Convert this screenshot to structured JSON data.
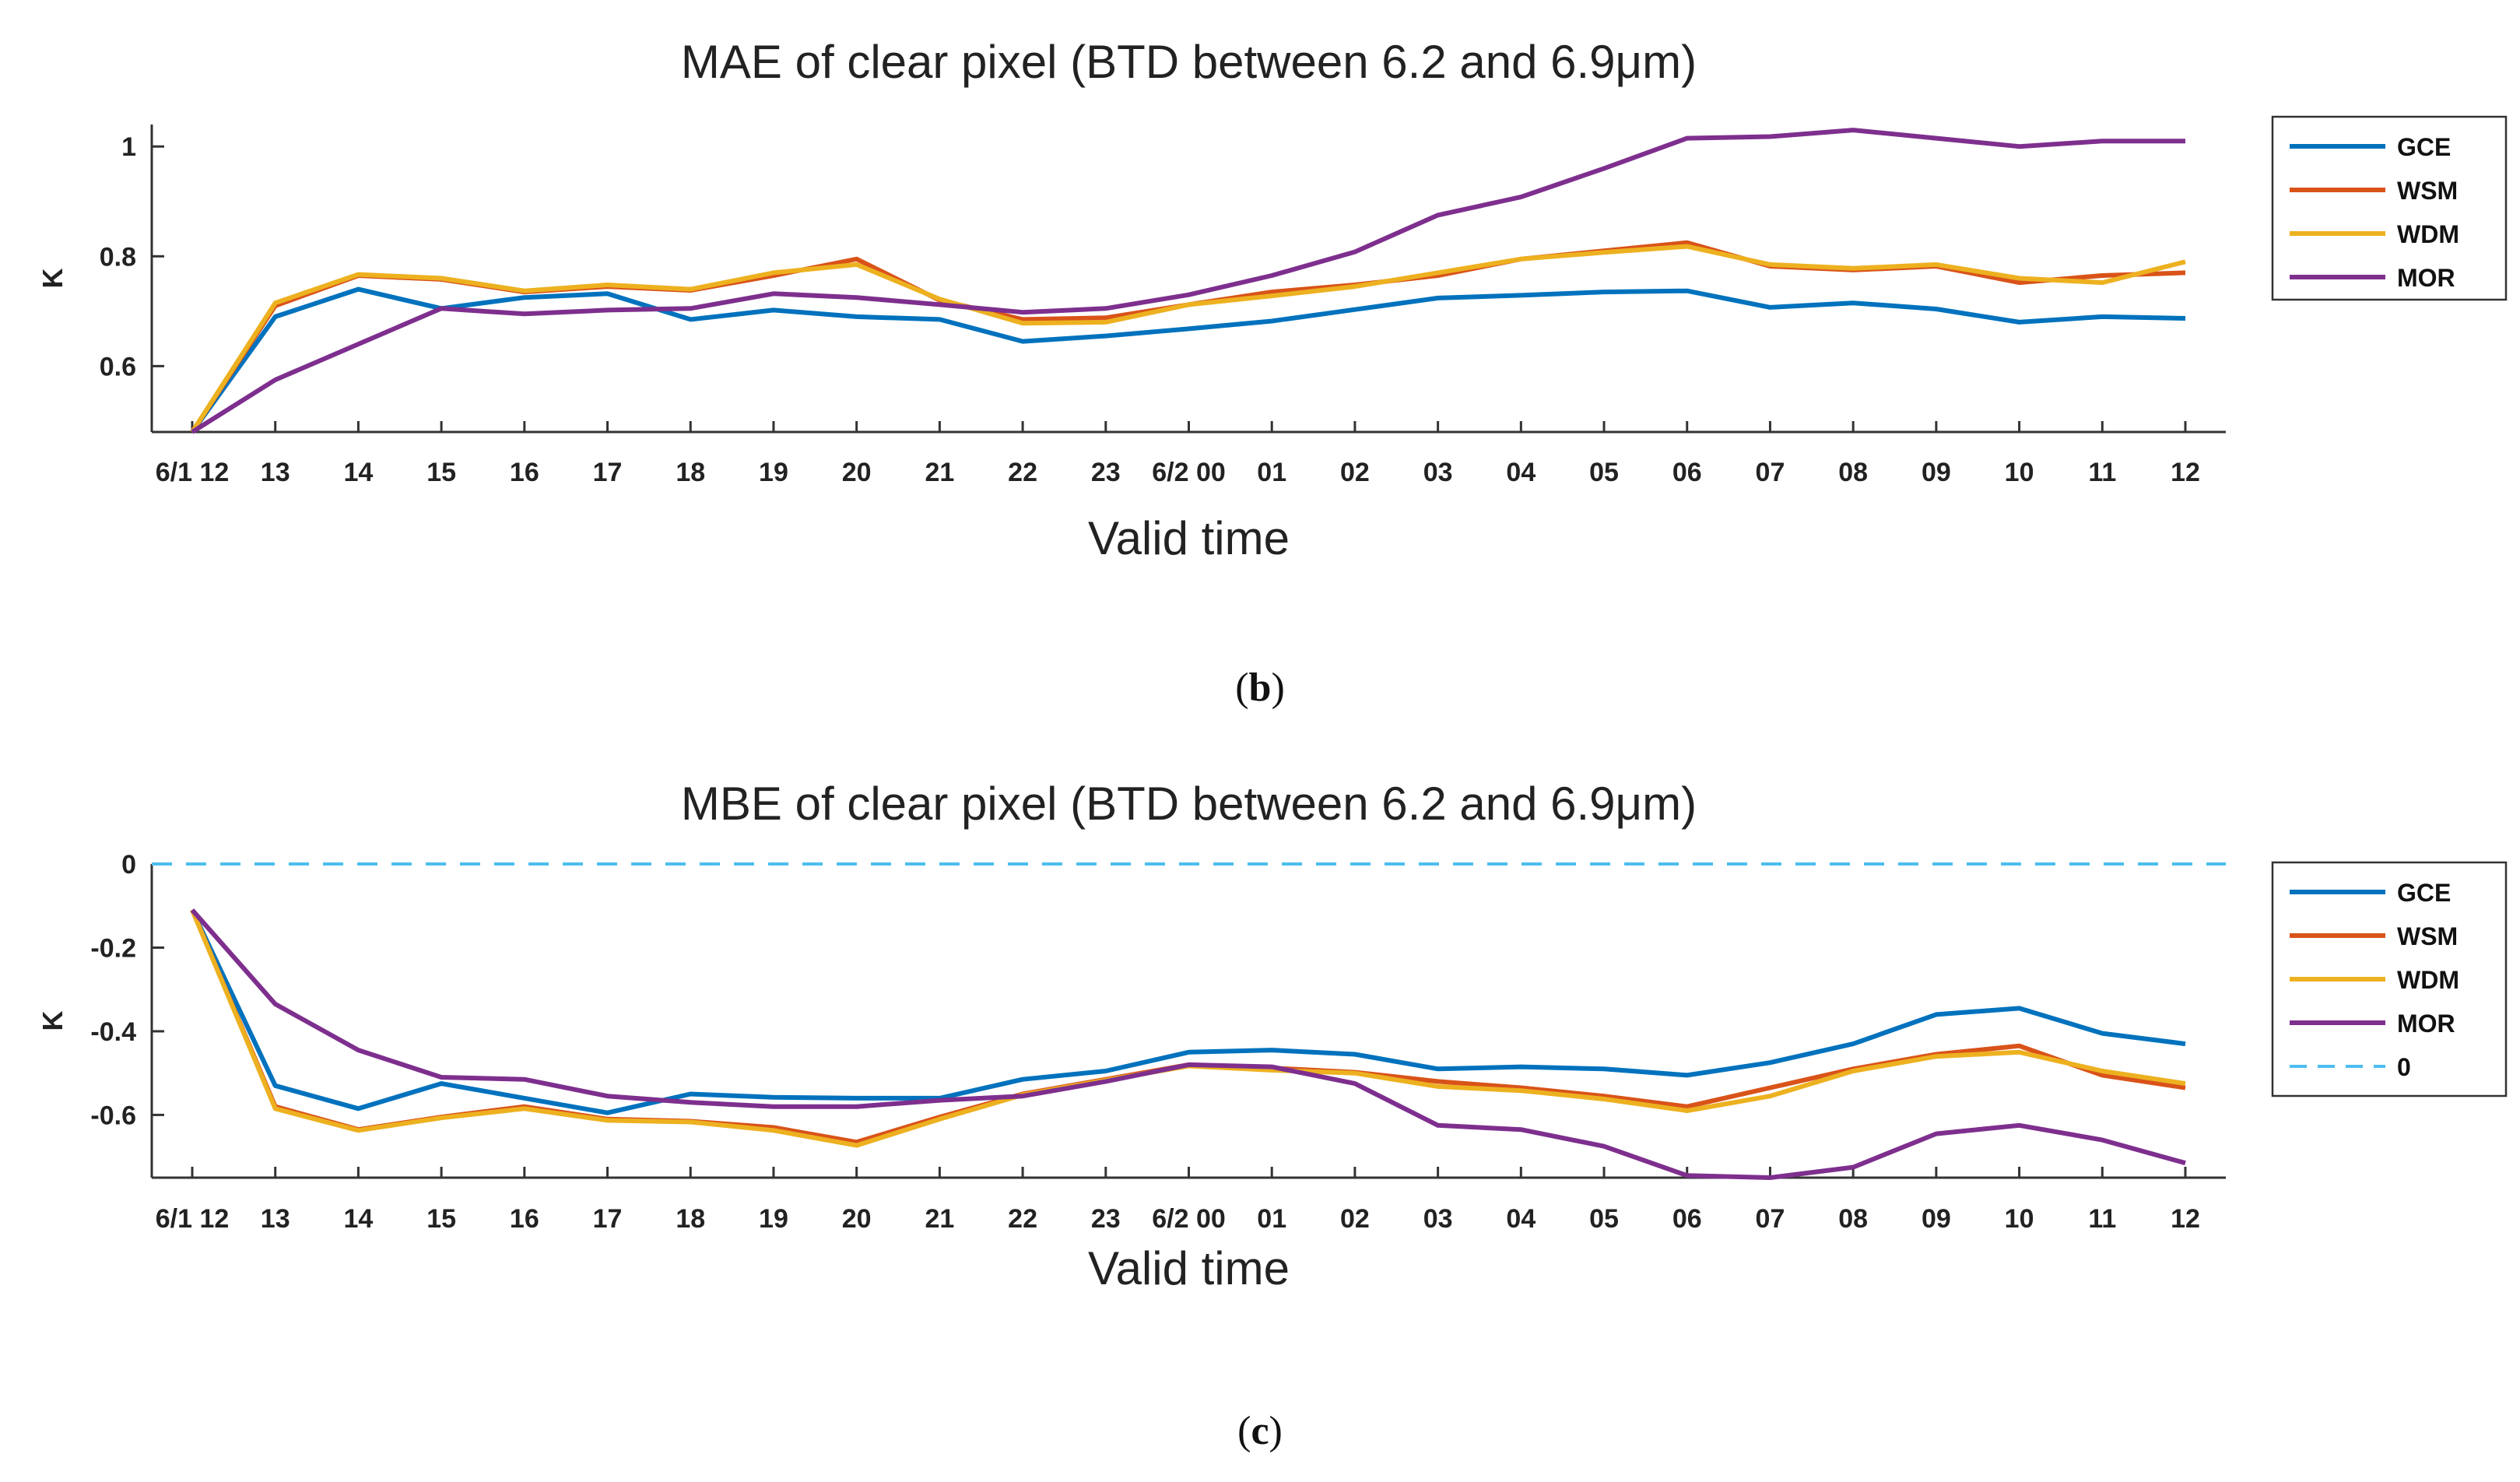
{
  "chart_data": [
    {
      "type": "line",
      "title": "MAE of clear pixel (BTD between 6.2 and 6.9μm)",
      "xlabel": "Valid time",
      "ylabel": "K",
      "panel_label": "b",
      "categories": [
        "6/1 12",
        "13",
        "14",
        "15",
        "16",
        "17",
        "18",
        "19",
        "20",
        "21",
        "22",
        "23",
        "6/2 00",
        "01",
        "02",
        "03",
        "04",
        "05",
        "06",
        "07",
        "08",
        "09",
        "10",
        "11",
        "12"
      ],
      "x_tick_labels": [
        "6/1 12",
        "13",
        "14",
        "15",
        "16",
        "17",
        "18",
        "19",
        "20",
        "21",
        "22",
        "23",
        "6/2 00",
        "01",
        "02",
        "03",
        "04",
        "05",
        "06",
        "07",
        "08",
        "09",
        "10",
        "11",
        "12"
      ],
      "y_ticks": [
        0.6,
        0.8,
        1
      ],
      "y_tick_labels": [
        "0.6",
        "0.8",
        "1"
      ],
      "ylim": [
        0.48,
        1.04
      ],
      "legend_position": "right",
      "series": [
        {
          "name": "GCE",
          "color": "#0072BD",
          "values": [
            0.48,
            0.69,
            0.74,
            0.705,
            0.725,
            0.732,
            0.685,
            0.702,
            0.69,
            0.685,
            0.645,
            0.655,
            0.668,
            0.682,
            0.703,
            0.724,
            0.729,
            0.735,
            0.737,
            0.707,
            0.715,
            0.704,
            0.68,
            0.69,
            0.687
          ]
        },
        {
          "name": "WSM",
          "color": "#D95319",
          "values": [
            0.48,
            0.71,
            0.765,
            0.758,
            0.735,
            0.745,
            0.738,
            0.765,
            0.795,
            0.72,
            0.685,
            0.688,
            0.712,
            0.735,
            0.748,
            0.765,
            0.795,
            0.81,
            0.825,
            0.782,
            0.775,
            0.782,
            0.752,
            0.765,
            0.77
          ]
        },
        {
          "name": "WDM",
          "color": "#EDB120",
          "values": [
            0.48,
            0.715,
            0.767,
            0.76,
            0.737,
            0.748,
            0.74,
            0.77,
            0.785,
            0.722,
            0.678,
            0.68,
            0.712,
            0.728,
            0.745,
            0.77,
            0.795,
            0.807,
            0.818,
            0.785,
            0.778,
            0.785,
            0.76,
            0.752,
            0.79
          ]
        },
        {
          "name": "MOR",
          "color": "#7E2F8E",
          "values": [
            0.48,
            0.575,
            0.64,
            0.705,
            0.695,
            0.702,
            0.705,
            0.732,
            0.725,
            0.712,
            0.698,
            0.705,
            0.73,
            0.765,
            0.808,
            0.875,
            0.908,
            0.96,
            1.015,
            1.018,
            1.03,
            1.015,
            1.0,
            1.01,
            1.01
          ]
        }
      ]
    },
    {
      "type": "line",
      "title": "MBE of clear pixel (BTD between 6.2 and 6.9μm)",
      "xlabel": "Valid time",
      "ylabel": "K",
      "panel_label": "c",
      "categories": [
        "6/1 12",
        "13",
        "14",
        "15",
        "16",
        "17",
        "18",
        "19",
        "20",
        "21",
        "22",
        "23",
        "6/2 00",
        "01",
        "02",
        "03",
        "04",
        "05",
        "06",
        "07",
        "08",
        "09",
        "10",
        "11",
        "12"
      ],
      "x_tick_labels": [
        "6/1 12",
        "13",
        "14",
        "15",
        "16",
        "17",
        "18",
        "19",
        "20",
        "21",
        "22",
        "23",
        "6/2 00",
        "01",
        "02",
        "03",
        "04",
        "05",
        "06",
        "07",
        "08",
        "09",
        "10",
        "11",
        "12"
      ],
      "y_ticks": [
        -0.6,
        -0.4,
        -0.2,
        0
      ],
      "y_tick_labels": [
        "-0.6",
        "-0.4",
        "-0.2",
        "0"
      ],
      "ylim": [
        -0.75,
        0.0
      ],
      "legend_position": "right",
      "series": [
        {
          "name": "GCE",
          "color": "#0072BD",
          "values": [
            -0.11,
            -0.53,
            -0.585,
            -0.525,
            -0.56,
            -0.595,
            -0.55,
            -0.558,
            -0.56,
            -0.56,
            -0.515,
            -0.495,
            -0.45,
            -0.445,
            -0.455,
            -0.49,
            -0.485,
            -0.49,
            -0.505,
            -0.475,
            -0.43,
            -0.36,
            -0.345,
            -0.405,
            -0.43
          ]
        },
        {
          "name": "WSM",
          "color": "#D95319",
          "values": [
            -0.11,
            -0.58,
            -0.635,
            -0.605,
            -0.58,
            -0.61,
            -0.615,
            -0.63,
            -0.665,
            -0.605,
            -0.55,
            -0.515,
            -0.48,
            -0.488,
            -0.498,
            -0.52,
            -0.535,
            -0.555,
            -0.58,
            -0.535,
            -0.49,
            -0.455,
            -0.435,
            -0.505,
            -0.535
          ]
        },
        {
          "name": "WDM",
          "color": "#EDB120",
          "values": [
            -0.11,
            -0.585,
            -0.637,
            -0.607,
            -0.585,
            -0.613,
            -0.617,
            -0.637,
            -0.673,
            -0.61,
            -0.552,
            -0.517,
            -0.483,
            -0.493,
            -0.5,
            -0.532,
            -0.542,
            -0.562,
            -0.59,
            -0.555,
            -0.495,
            -0.46,
            -0.45,
            -0.495,
            -0.525
          ]
        },
        {
          "name": "MOR",
          "color": "#7E2F8E",
          "values": [
            -0.11,
            -0.335,
            -0.445,
            -0.51,
            -0.515,
            -0.555,
            -0.57,
            -0.58,
            -0.58,
            -0.565,
            -0.555,
            -0.52,
            -0.48,
            -0.485,
            -0.525,
            -0.625,
            -0.635,
            -0.675,
            -0.745,
            -0.75,
            -0.725,
            -0.645,
            -0.625,
            -0.66,
            -0.715
          ]
        },
        {
          "name": "0",
          "color": "#4DBEEE",
          "dashed": true,
          "values": [
            0,
            0,
            0,
            0,
            0,
            0,
            0,
            0,
            0,
            0,
            0,
            0,
            0,
            0,
            0,
            0,
            0,
            0,
            0,
            0,
            0,
            0,
            0,
            0,
            0
          ]
        }
      ]
    }
  ]
}
